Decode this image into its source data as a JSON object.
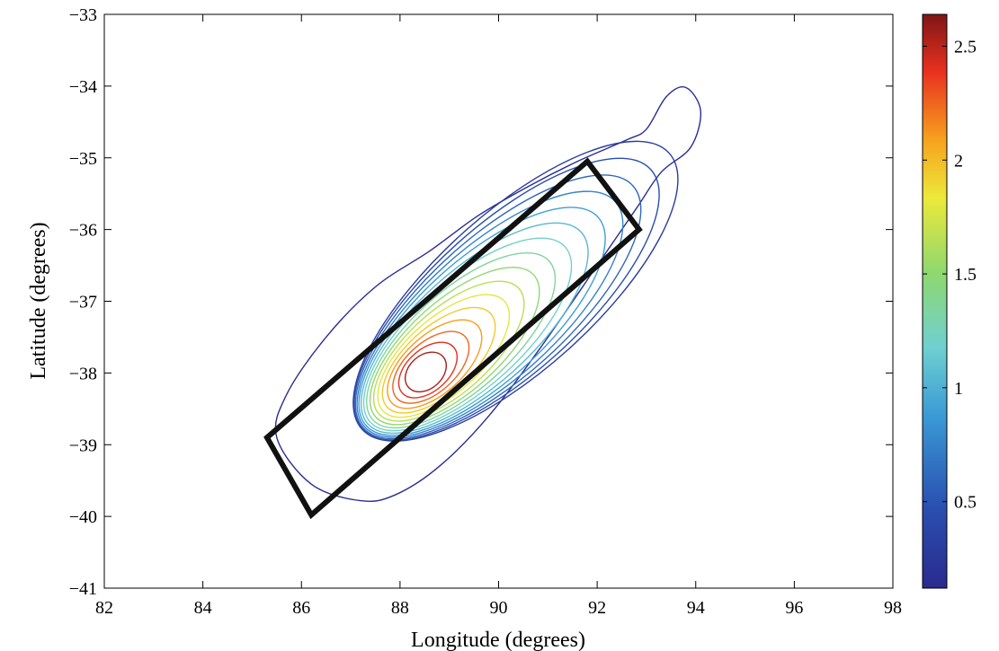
{
  "chart_data": {
    "type": "contour",
    "title": "",
    "xlabel": "Longitude (degrees)",
    "ylabel": "Latitude (degrees)",
    "xlim": [
      82,
      98
    ],
    "ylim": [
      -41,
      -33
    ],
    "xticks": [
      82,
      84,
      86,
      88,
      90,
      92,
      94,
      96,
      98
    ],
    "yticks": [
      -41,
      -40,
      -39,
      -38,
      -37,
      -36,
      -35,
      -34,
      -33
    ],
    "grid": false,
    "colorbar": {
      "range": [
        0.12,
        2.64
      ],
      "ticks": [
        0.5,
        1,
        1.5,
        2,
        2.5
      ],
      "colormap": "jet",
      "placement": "right"
    },
    "contour_center": {
      "x": 88.5,
      "y": -38.0
    },
    "contour_levels": [
      0.15,
      0.3,
      0.45,
      0.6,
      0.75,
      0.9,
      1.05,
      1.2,
      1.35,
      1.5,
      1.65,
      1.8,
      1.95,
      2.1,
      2.25,
      2.4,
      2.55
    ],
    "outer_contour": [
      [
        87.2,
        -39.78
      ],
      [
        86.2,
        -39.55
      ],
      [
        85.5,
        -38.9
      ],
      [
        85.7,
        -38.3
      ],
      [
        86.5,
        -37.5
      ],
      [
        87.5,
        -36.8
      ],
      [
        88.6,
        -36.3
      ],
      [
        89.6,
        -35.8
      ],
      [
        90.6,
        -35.4
      ],
      [
        91.6,
        -35.05
      ],
      [
        92.6,
        -34.75
      ],
      [
        93.0,
        -34.6
      ],
      [
        93.4,
        -34.15
      ],
      [
        93.8,
        -34.02
      ],
      [
        94.1,
        -34.35
      ],
      [
        93.9,
        -34.85
      ],
      [
        93.3,
        -35.2
      ],
      [
        92.8,
        -35.7
      ],
      [
        92.0,
        -36.5
      ],
      [
        90.9,
        -37.6
      ],
      [
        89.8,
        -38.6
      ],
      [
        88.8,
        -39.3
      ],
      [
        87.9,
        -39.7
      ]
    ],
    "box_polygon": [
      [
        85.3,
        -38.9
      ],
      [
        91.8,
        -35.05
      ],
      [
        92.85,
        -36.0
      ],
      [
        86.2,
        -39.98
      ]
    ]
  }
}
